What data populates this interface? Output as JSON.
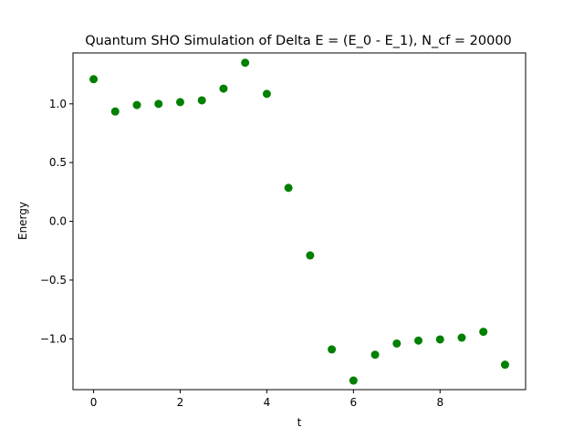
{
  "chart_data": {
    "type": "scatter",
    "title": "Quantum SHO Simulation of Delta E = (E_0 - E_1), N_cf = 20000",
    "xlabel": "t",
    "ylabel": "Energy",
    "xlim": [
      -0.475,
      9.975
    ],
    "ylim": [
      -1.4325,
      1.4335
    ],
    "xticks": [
      0,
      2,
      4,
      6,
      8
    ],
    "xtick_labels": [
      "0",
      "2",
      "4",
      "6",
      "8"
    ],
    "yticks": [
      -1.0,
      -0.5,
      0.0,
      0.5,
      1.0
    ],
    "ytick_labels": [
      "−1.0",
      "−0.5",
      "0.0",
      "0.5",
      "1.0"
    ],
    "grid": false,
    "series": [
      {
        "color": "#008000",
        "marker": "circle",
        "x": [
          0.0,
          0.5,
          1.0,
          1.5,
          2.0,
          2.5,
          3.0,
          3.5,
          4.0,
          4.5,
          5.0,
          5.5,
          6.0,
          6.5,
          7.0,
          7.5,
          8.0,
          8.5,
          9.0,
          9.5
        ],
        "y": [
          1.21,
          0.935,
          0.99,
          1.0,
          1.015,
          1.03,
          1.13,
          1.35,
          1.085,
          0.285,
          -0.29,
          -1.09,
          -1.355,
          -1.135,
          -1.04,
          -1.015,
          -1.005,
          -0.99,
          -0.94,
          -1.22
        ]
      }
    ]
  }
}
